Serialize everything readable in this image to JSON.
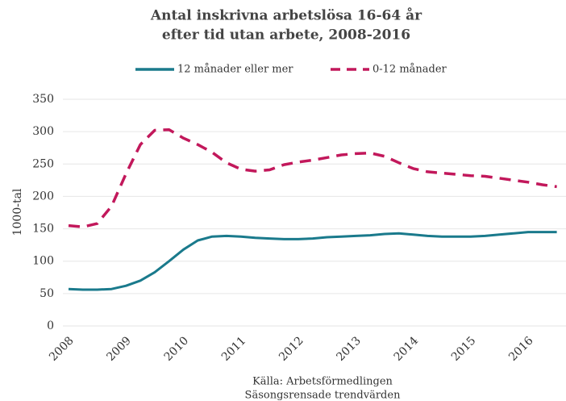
{
  "chart_data": {
    "type": "line",
    "title": "Antal inskrivna arbetslösa 16-64 år",
    "subtitle": "efter tid utan arbete, 2008-2016",
    "y_label": "1000-tal",
    "source": "Källa: Arbetsförmedlingen",
    "note": "Säsongsrensade trendvärden",
    "categories": [
      "2008",
      null,
      null,
      null,
      "2009",
      null,
      null,
      null,
      "2010",
      null,
      null,
      null,
      "2011",
      null,
      null,
      null,
      "2012",
      null,
      null,
      null,
      "2013",
      null,
      null,
      null,
      "2014",
      null,
      null,
      null,
      "2015",
      null,
      null,
      null,
      "2016",
      null,
      null
    ],
    "series": [
      {
        "name": "12 månader eller mer",
        "color": "#1a7a8c",
        "dash": false,
        "values": [
          57,
          56,
          56,
          57,
          62,
          70,
          83,
          100,
          118,
          132,
          138,
          139,
          138,
          136,
          135,
          134,
          134,
          135,
          137,
          138,
          139,
          140,
          142,
          143,
          141,
          139,
          138,
          138,
          138,
          139,
          141,
          143,
          145,
          145,
          145
        ]
      },
      {
        "name": "0-12 månader",
        "color": "#c2185b",
        "dash": true,
        "values": [
          155,
          153,
          158,
          185,
          235,
          280,
          302,
          303,
          290,
          280,
          268,
          252,
          242,
          239,
          241,
          249,
          253,
          256,
          260,
          264,
          266,
          267,
          262,
          252,
          243,
          238,
          236,
          234,
          232,
          231,
          228,
          225,
          222,
          218,
          215
        ]
      }
    ],
    "ylim": [
      0,
      350
    ],
    "yticks": [
      0,
      50,
      100,
      150,
      200,
      250,
      300,
      350
    ],
    "grid": true,
    "legend": "top"
  }
}
